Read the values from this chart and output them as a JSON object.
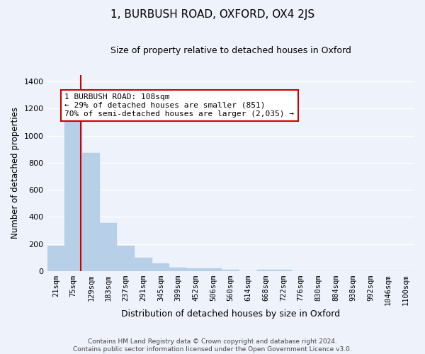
{
  "title": "1, BURBUSH ROAD, OXFORD, OX4 2JS",
  "subtitle": "Size of property relative to detached houses in Oxford",
  "xlabel": "Distribution of detached houses by size in Oxford",
  "ylabel": "Number of detached properties",
  "bar_color": "#b8cfe8",
  "bar_edge_color": "#b8cfe8",
  "background_color": "#eef2fb",
  "grid_color": "#ffffff",
  "categories": [
    "21sqm",
    "75sqm",
    "129sqm",
    "183sqm",
    "237sqm",
    "291sqm",
    "345sqm",
    "399sqm",
    "452sqm",
    "506sqm",
    "560sqm",
    "614sqm",
    "668sqm",
    "722sqm",
    "776sqm",
    "830sqm",
    "884sqm",
    "938sqm",
    "992sqm",
    "1046sqm",
    "1100sqm"
  ],
  "values": [
    190,
    1115,
    875,
    355,
    190,
    100,
    55,
    25,
    22,
    18,
    12,
    0,
    12,
    10,
    0,
    0,
    0,
    0,
    0,
    0,
    0
  ],
  "property_line_x": 1.42,
  "annotation_text": "1 BURBUSH ROAD: 108sqm\n← 29% of detached houses are smaller (851)\n70% of semi-detached houses are larger (2,035) →",
  "annotation_box_color": "#ffffff",
  "annotation_box_edge_color": "#cc0000",
  "line_color": "#cc0000",
  "ylim": [
    0,
    1450
  ],
  "yticks": [
    0,
    200,
    400,
    600,
    800,
    1000,
    1200,
    1400
  ],
  "footer_line1": "Contains HM Land Registry data © Crown copyright and database right 2024.",
  "footer_line2": "Contains public sector information licensed under the Open Government Licence v3.0."
}
